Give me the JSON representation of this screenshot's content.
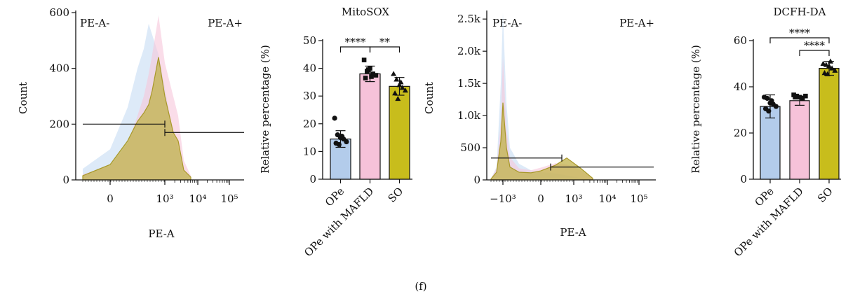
{
  "figure_label": "(f)",
  "colors": {
    "ope": "#b3cceb",
    "ope_mafld": "#f6c2d9",
    "so": "#c8bd1c",
    "axis": "#111111",
    "hist_blue": "#c6dcf3",
    "hist_pink": "#f7c6da",
    "hist_olive": "#c2b14a"
  },
  "chart_data": [
    {
      "type": "area",
      "panel": "histogram-mitosox",
      "xlabel": "PE-A",
      "ylabel": "Count",
      "x_scale": "biexponential",
      "x_tick_labels": [
        "0",
        "10³",
        "10⁴",
        "10⁵"
      ],
      "x_ticks": [
        0,
        1000,
        10000,
        100000
      ],
      "y_ticks": [
        0,
        200,
        400,
        600
      ],
      "ylim": [
        0,
        600
      ],
      "gate_labels": [
        "PE-A-",
        "PE-A+"
      ],
      "gates": [
        {
          "label": "PE-A-",
          "x_range": [
            -100,
            1000
          ],
          "y": 200
        },
        {
          "label": "PE-A+",
          "x_range": [
            1000,
            250000
          ],
          "y": 170
        }
      ],
      "series": [
        {
          "color": "#c6dcf3",
          "x": [
            -100,
            0,
            100,
            200,
            300,
            400,
            500,
            700,
            1000,
            1500,
            2000,
            3000,
            5000
          ],
          "y": [
            40,
            110,
            260,
            400,
            470,
            560,
            520,
            450,
            330,
            160,
            110,
            25,
            8
          ]
        },
        {
          "color": "#f7c6da",
          "x": [
            -100,
            0,
            100,
            200,
            300,
            400,
            500,
            700,
            1000,
            1500,
            2000,
            3000,
            5000
          ],
          "y": [
            20,
            50,
            130,
            230,
            300,
            380,
            450,
            590,
            420,
            300,
            230,
            70,
            15
          ]
        },
        {
          "color": "#c2b14a",
          "x": [
            -100,
            0,
            100,
            200,
            300,
            400,
            500,
            700,
            1000,
            1500,
            2000,
            3000,
            5000
          ],
          "y": [
            15,
            55,
            140,
            210,
            240,
            270,
            320,
            440,
            300,
            170,
            140,
            35,
            10
          ]
        }
      ]
    },
    {
      "type": "bar",
      "panel": "bar-mitosox",
      "title": "MitoSOX",
      "ylabel": "Relative percentage (%)",
      "categories": [
        "OPe",
        "OPe with MAFLD",
        "SO"
      ],
      "values": [
        14.5,
        38.0,
        33.5
      ],
      "errors": [
        3.0,
        2.8,
        3.2
      ],
      "colors": [
        "#b3cceb",
        "#f6c2d9",
        "#c8bd1c"
      ],
      "point_markers": [
        "circle",
        "square",
        "triangle"
      ],
      "points": [
        [
          22,
          16,
          15,
          14.5,
          13.5,
          13,
          12.5,
          15.5
        ],
        [
          43,
          39,
          40,
          38,
          37.5,
          36.5,
          39.5,
          37
        ],
        [
          38,
          36,
          34,
          33,
          32,
          31,
          29,
          35
        ]
      ],
      "ylim": [
        0,
        50
      ],
      "y_ticks": [
        0,
        10,
        20,
        30,
        40,
        50
      ],
      "significance": [
        {
          "pair": [
            0,
            1
          ],
          "label": "****"
        },
        {
          "pair": [
            1,
            2
          ],
          "label": "**"
        }
      ]
    },
    {
      "type": "area",
      "panel": "histogram-dcfh",
      "xlabel": "PE-A",
      "ylabel": "Count",
      "x_scale": "biexponential",
      "x_tick_labels": [
        "−10³",
        "0",
        "10³",
        "10⁴",
        "10⁵"
      ],
      "x_ticks": [
        -1000,
        0,
        1000,
        10000,
        100000
      ],
      "y_tick_labels": [
        "0",
        "500",
        "1.0k",
        "1.5k",
        "2.0k",
        "2.5k"
      ],
      "y_ticks": [
        0,
        500,
        1000,
        1500,
        2000,
        2500
      ],
      "ylim": [
        0,
        2600
      ],
      "gate_labels": [
        "PE-A-",
        "PE-A+"
      ],
      "gates": [
        {
          "label": "PE-A-",
          "x_range": [
            -1500,
            450
          ],
          "y": 340
        },
        {
          "label": "PE-A+",
          "x_range": [
            150,
            250000
          ],
          "y": 200
        }
      ],
      "series": [
        {
          "color": "#c6dcf3",
          "x": [
            -1500,
            -1250,
            -1100,
            -1000,
            -900,
            -800,
            -600,
            -300,
            0,
            300,
            700,
            1500,
            3000
          ],
          "y": [
            20,
            200,
            1500,
            2600,
            1200,
            500,
            250,
            150,
            120,
            100,
            70,
            30,
            8
          ]
        },
        {
          "color": "#f7c6da",
          "x": [
            -1500,
            -1250,
            -1100,
            -1000,
            -900,
            -800,
            -600,
            -300,
            0,
            300,
            700,
            1500,
            3000
          ],
          "y": [
            20,
            180,
            900,
            1900,
            800,
            350,
            180,
            150,
            190,
            260,
            240,
            150,
            30
          ]
        },
        {
          "color": "#c2b14a",
          "x": [
            -1500,
            -1250,
            -1100,
            -1000,
            -900,
            -800,
            -600,
            -300,
            0,
            300,
            700,
            1500,
            3000
          ],
          "y": [
            15,
            120,
            600,
            1200,
            500,
            200,
            120,
            110,
            140,
            230,
            340,
            180,
            25
          ]
        }
      ]
    },
    {
      "type": "bar",
      "panel": "bar-dcfh",
      "title": "DCFH-DA",
      "ylabel": "Relative percentage (%)",
      "categories": [
        "OPe",
        "OPe with MAFLD",
        "SO"
      ],
      "values": [
        31.5,
        34.0,
        48.0
      ],
      "errors": [
        5.0,
        2.0,
        3.0
      ],
      "colors": [
        "#b3cceb",
        "#f6c2d9",
        "#c8bd1c"
      ],
      "point_markers": [
        "circle",
        "square",
        "triangle"
      ],
      "points": [
        [
          35.5,
          35,
          33,
          32.5,
          31.5,
          30.5,
          29.5,
          34
        ],
        [
          36.5,
          36,
          35.5,
          35,
          36,
          35.5
        ],
        [
          50,
          49.5,
          49,
          48,
          47,
          46,
          45.5,
          51
        ]
      ],
      "ylim": [
        0,
        60
      ],
      "y_ticks": [
        0,
        20,
        40,
        60
      ],
      "significance": [
        {
          "pair": [
            0,
            2
          ],
          "label": "****"
        },
        {
          "pair": [
            1,
            2
          ],
          "label": "****"
        }
      ]
    }
  ]
}
